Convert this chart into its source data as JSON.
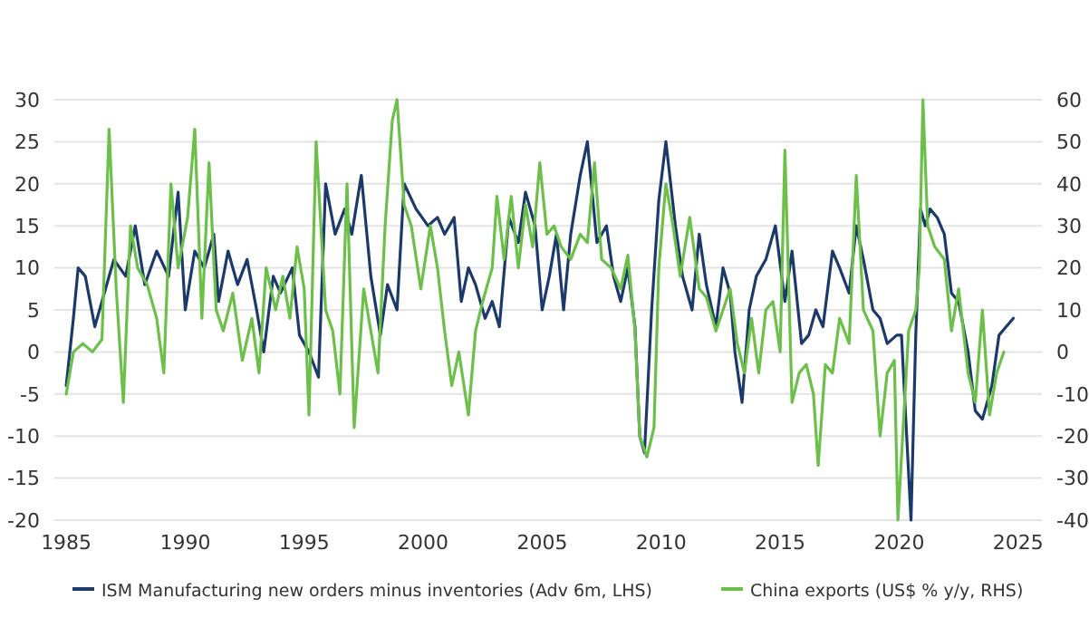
{
  "chart_data": {
    "type": "line",
    "xlim": [
      1984.5,
      2026
    ],
    "xticks": [
      1985,
      1990,
      1995,
      2000,
      2005,
      2010,
      2015,
      2020,
      2025
    ],
    "ylim": [
      -20,
      30
    ],
    "yticks": [
      -20,
      -15,
      -10,
      -5,
      0,
      5,
      10,
      15,
      20,
      25,
      30
    ],
    "y2lim": [
      -40,
      60
    ],
    "y2ticks": [
      -40,
      -30,
      -20,
      -10,
      0,
      10,
      20,
      30,
      40,
      50,
      60
    ],
    "grid": "y",
    "legend": "bottom",
    "series": [
      {
        "name": "ISM Manufacturing new orders minus inventories (Adv 6m, LHS)",
        "color": "#1b3a6b",
        "x": [
          1985.0,
          1985.3,
          1985.5,
          1985.8,
          1986.2,
          1986.6,
          1987.0,
          1987.5,
          1987.9,
          1988.3,
          1988.8,
          1989.3,
          1989.7,
          1990.0,
          1990.4,
          1990.8,
          1991.2,
          1991.4,
          1991.8,
          1992.2,
          1992.6,
          1993.0,
          1993.3,
          1993.7,
          1994.0,
          1994.5,
          1994.8,
          1995.2,
          1995.6,
          1995.9,
          1996.3,
          1996.7,
          1997.0,
          1997.4,
          1997.8,
          1998.2,
          1998.5,
          1998.9,
          1999.2,
          1999.7,
          2000.2,
          2000.6,
          2000.9,
          2001.3,
          2001.6,
          2001.9,
          2002.2,
          2002.6,
          2002.9,
          2003.2,
          2003.6,
          2004.0,
          2004.3,
          2004.7,
          2005.0,
          2005.3,
          2005.6,
          2005.9,
          2006.2,
          2006.6,
          2006.9,
          2007.3,
          2007.7,
          2008.0,
          2008.3,
          2008.6,
          2008.9,
          2009.1,
          2009.3,
          2009.6,
          2009.9,
          2010.2,
          2010.6,
          2010.9,
          2011.3,
          2011.6,
          2011.9,
          2012.3,
          2012.6,
          2012.9,
          2013.1,
          2013.4,
          2013.7,
          2014.0,
          2014.4,
          2014.8,
          2015.2,
          2015.5,
          2015.9,
          2016.2,
          2016.5,
          2016.8,
          2017.2,
          2017.5,
          2017.9,
          2018.2,
          2018.5,
          2018.9,
          2019.2,
          2019.5,
          2019.9,
          2020.1,
          2020.5,
          2020.7,
          2020.9,
          2021.1,
          2021.3,
          2021.6,
          2021.9,
          2022.2,
          2022.5,
          2022.9,
          2023.2,
          2023.5,
          2023.9,
          2024.2,
          2024.5,
          2024.8
        ],
        "values": [
          -4,
          4,
          10,
          9,
          3,
          7,
          11,
          9,
          15,
          8,
          12,
          9,
          19,
          5,
          12,
          10,
          14,
          6,
          12,
          8,
          11,
          5,
          0,
          9,
          7,
          10,
          2,
          0,
          -3,
          20,
          14,
          17,
          14,
          21,
          9,
          2,
          8,
          5,
          20,
          17,
          15,
          16,
          14,
          16,
          6,
          10,
          8,
          4,
          6,
          3,
          16,
          13,
          19,
          15,
          5,
          9,
          14,
          5,
          14,
          21,
          25,
          13,
          15,
          9,
          6,
          10,
          3,
          -10,
          -12,
          5,
          18,
          25,
          15,
          9,
          5,
          14,
          8,
          3,
          10,
          7,
          0,
          -6,
          5,
          9,
          11,
          15,
          6,
          12,
          1,
          2,
          5,
          3,
          12,
          10,
          7,
          15,
          11,
          5,
          4,
          1,
          2,
          2,
          -20,
          2,
          17,
          15,
          17,
          16,
          14,
          7,
          6,
          0,
          -7,
          -8,
          -4,
          2,
          3,
          4
        ]
      },
      {
        "name": "China exports (US$ % y/y, RHS)",
        "color": "#6cc04a",
        "axis": "y2",
        "x": [
          1985.0,
          1985.3,
          1985.7,
          1986.1,
          1986.5,
          1986.8,
          1987.1,
          1987.4,
          1987.7,
          1988.0,
          1988.4,
          1988.8,
          1989.1,
          1989.4,
          1989.7,
          1990.1,
          1990.4,
          1990.7,
          1991.0,
          1991.3,
          1991.6,
          1992.0,
          1992.4,
          1992.8,
          1993.1,
          1993.4,
          1993.8,
          1994.1,
          1994.4,
          1994.7,
          1995.0,
          1995.2,
          1995.5,
          1995.9,
          1996.2,
          1996.5,
          1996.8,
          1997.1,
          1997.5,
          1997.8,
          1998.1,
          1998.4,
          1998.7,
          1998.9,
          1999.2,
          1999.5,
          1999.9,
          2000.3,
          2000.6,
          2000.9,
          2001.2,
          2001.5,
          2001.9,
          2002.2,
          2002.5,
          2002.9,
          2003.1,
          2003.4,
          2003.7,
          2004.0,
          2004.3,
          2004.6,
          2004.9,
          2005.2,
          2005.5,
          2005.8,
          2006.2,
          2006.6,
          2006.9,
          2007.2,
          2007.5,
          2007.9,
          2008.3,
          2008.6,
          2008.9,
          2009.1,
          2009.4,
          2009.7,
          2009.9,
          2010.2,
          2010.5,
          2010.8,
          2011.2,
          2011.6,
          2011.9,
          2012.3,
          2012.6,
          2012.9,
          2013.2,
          2013.5,
          2013.8,
          2014.1,
          2014.4,
          2014.7,
          2015.0,
          2015.2,
          2015.5,
          2015.8,
          2016.1,
          2016.4,
          2016.6,
          2016.9,
          2017.2,
          2017.5,
          2017.9,
          2018.2,
          2018.5,
          2018.9,
          2019.2,
          2019.5,
          2019.8,
          2019.95,
          2020.4,
          2020.7,
          2020.85,
          2021.0,
          2021.2,
          2021.5,
          2021.9,
          2022.2,
          2022.5,
          2022.9,
          2023.2,
          2023.5,
          2023.8,
          2024.1,
          2024.4
        ],
        "values": [
          -10,
          0,
          2,
          0,
          3,
          53,
          15,
          -12,
          30,
          20,
          16,
          8,
          -5,
          40,
          20,
          32,
          53,
          8,
          45,
          10,
          5,
          14,
          -2,
          8,
          -5,
          20,
          10,
          18,
          8,
          25,
          15,
          -15,
          50,
          10,
          5,
          -10,
          40,
          -18,
          15,
          5,
          -5,
          30,
          55,
          60,
          35,
          30,
          15,
          30,
          20,
          5,
          -8,
          0,
          -15,
          5,
          12,
          20,
          37,
          22,
          37,
          20,
          35,
          25,
          45,
          28,
          30,
          25,
          22,
          28,
          26,
          45,
          22,
          20,
          15,
          23,
          5,
          -20,
          -25,
          -18,
          20,
          40,
          30,
          18,
          32,
          15,
          13,
          5,
          10,
          15,
          2,
          -5,
          8,
          -5,
          10,
          12,
          0,
          48,
          -12,
          -5,
          -3,
          -10,
          -27,
          -3,
          -5,
          8,
          2,
          42,
          10,
          5,
          -20,
          -5,
          -2,
          -40,
          5,
          10,
          20,
          60,
          30,
          25,
          22,
          5,
          15,
          -5,
          -12,
          10,
          -15,
          -5,
          0
        ]
      }
    ]
  }
}
